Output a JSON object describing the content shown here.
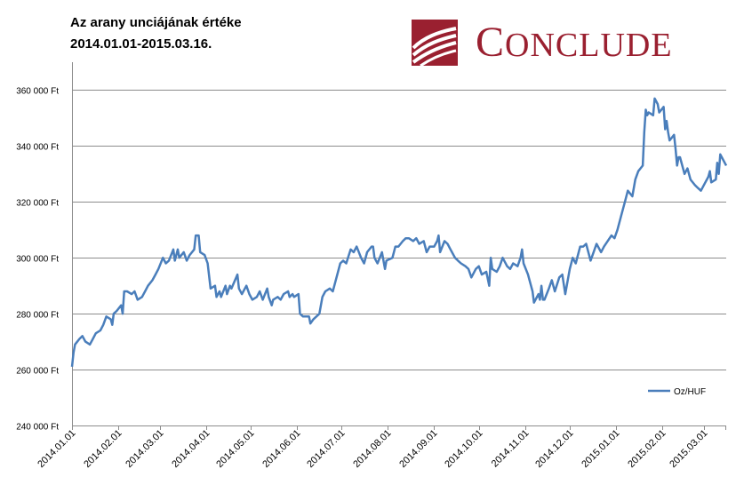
{
  "header": {
    "title_line1": "Az arany unciájának értéke",
    "title_line2": "2014.01.01-2015.03.16."
  },
  "brand": {
    "logo_cap": "C",
    "logo_rest": "ONCLUDE",
    "logo_text": "CONCLUDE",
    "color": "#9a2030"
  },
  "chart_data": {
    "type": "line",
    "title": "",
    "xlabel": "",
    "ylabel": "",
    "x_start": "2014.01.01",
    "x_end": "2015.03.16",
    "ylim": [
      240000,
      370000
    ],
    "grid": "horizontal",
    "legend_placement": "bottom-right",
    "y_ticks": [
      {
        "value": 240000,
        "label": "240 000 Ft"
      },
      {
        "value": 260000,
        "label": "260 000 Ft"
      },
      {
        "value": 280000,
        "label": "280 000 Ft"
      },
      {
        "value": 300000,
        "label": "300 000 Ft"
      },
      {
        "value": 320000,
        "label": "320 000 Ft"
      },
      {
        "value": 340000,
        "label": "340 000 Ft"
      },
      {
        "value": 360000,
        "label": "360 000 Ft"
      }
    ],
    "x_ticks": [
      "2014.01.01",
      "2014.02.01",
      "2014.03.01",
      "2014.04.01",
      "2014.05.01",
      "2014.06.01",
      "2014.07.01",
      "2014.08.01",
      "2014.09.01",
      "2014.10.01",
      "2014.11.01",
      "2014.12.01",
      "2015.01.01",
      "2015.02.01",
      "2015.03.01"
    ],
    "series": [
      {
        "name": "Oz/HUF",
        "color": "#4a7ebb",
        "points": [
          [
            "2014.01.01",
            261000
          ],
          [
            "2014.01.02",
            266000
          ],
          [
            "2014.01.03",
            269000
          ],
          [
            "2014.01.06",
            271000
          ],
          [
            "2014.01.08",
            272000
          ],
          [
            "2014.01.10",
            270000
          ],
          [
            "2014.01.13",
            269000
          ],
          [
            "2014.01.15",
            271000
          ],
          [
            "2014.01.17",
            273000
          ],
          [
            "2014.01.20",
            274000
          ],
          [
            "2014.01.22",
            276000
          ],
          [
            "2014.01.24",
            279000
          ],
          [
            "2014.01.27",
            278000
          ],
          [
            "2014.01.28",
            276000
          ],
          [
            "2014.01.29",
            280000
          ],
          [
            "2014.01.31",
            281000
          ],
          [
            "2014.02.03",
            283000
          ],
          [
            "2014.02.04",
            280000
          ],
          [
            "2014.02.05",
            288000
          ],
          [
            "2014.02.07",
            288000
          ],
          [
            "2014.02.10",
            287000
          ],
          [
            "2014.02.12",
            288000
          ],
          [
            "2014.02.14",
            285000
          ],
          [
            "2014.02.17",
            286000
          ],
          [
            "2014.02.19",
            288000
          ],
          [
            "2014.02.21",
            290000
          ],
          [
            "2014.02.24",
            292000
          ],
          [
            "2014.02.26",
            294000
          ],
          [
            "2014.02.28",
            296000
          ],
          [
            "2014.03.03",
            300000
          ],
          [
            "2014.03.05",
            298000
          ],
          [
            "2014.03.07",
            299000
          ],
          [
            "2014.03.10",
            303000
          ],
          [
            "2014.03.11",
            299000
          ],
          [
            "2014.03.13",
            303000
          ],
          [
            "2014.03.14",
            300000
          ],
          [
            "2014.03.17",
            302000
          ],
          [
            "2014.03.19",
            299000
          ],
          [
            "2014.03.21",
            301000
          ],
          [
            "2014.03.24",
            303000
          ],
          [
            "2014.03.25",
            308000
          ],
          [
            "2014.03.27",
            308000
          ],
          [
            "2014.03.28",
            302000
          ],
          [
            "2014.03.31",
            301000
          ],
          [
            "2014.04.02",
            298000
          ],
          [
            "2014.04.04",
            289000
          ],
          [
            "2014.04.07",
            290000
          ],
          [
            "2014.04.08",
            286000
          ],
          [
            "2014.04.10",
            288000
          ],
          [
            "2014.04.11",
            286000
          ],
          [
            "2014.04.14",
            290000
          ],
          [
            "2014.04.15",
            287000
          ],
          [
            "2014.04.17",
            290000
          ],
          [
            "2014.04.18",
            289000
          ],
          [
            "2014.04.22",
            294000
          ],
          [
            "2014.04.23",
            289000
          ],
          [
            "2014.04.25",
            287000
          ],
          [
            "2014.04.28",
            290000
          ],
          [
            "2014.04.30",
            287000
          ],
          [
            "2014.05.02",
            285000
          ],
          [
            "2014.05.05",
            286000
          ],
          [
            "2014.05.07",
            288000
          ],
          [
            "2014.05.09",
            285000
          ],
          [
            "2014.05.12",
            289000
          ],
          [
            "2014.05.13",
            286000
          ],
          [
            "2014.05.15",
            283000
          ],
          [
            "2014.05.16",
            285000
          ],
          [
            "2014.05.19",
            286000
          ],
          [
            "2014.05.21",
            285000
          ],
          [
            "2014.05.23",
            287000
          ],
          [
            "2014.05.26",
            288000
          ],
          [
            "2014.05.27",
            286000
          ],
          [
            "2014.05.29",
            287000
          ],
          [
            "2014.05.30",
            286000
          ],
          [
            "2014.06.02",
            287000
          ],
          [
            "2014.06.03",
            280000
          ],
          [
            "2014.06.05",
            279000
          ],
          [
            "2014.06.09",
            279000
          ],
          [
            "2014.06.10",
            276500
          ],
          [
            "2014.06.12",
            278000
          ],
          [
            "2014.06.16",
            280000
          ],
          [
            "2014.06.18",
            286000
          ],
          [
            "2014.06.20",
            288000
          ],
          [
            "2014.06.23",
            289000
          ],
          [
            "2014.06.25",
            288000
          ],
          [
            "2014.06.26",
            290000
          ],
          [
            "2014.06.30",
            298000
          ],
          [
            "2014.07.02",
            299000
          ],
          [
            "2014.07.04",
            298000
          ],
          [
            "2014.07.07",
            303000
          ],
          [
            "2014.07.09",
            302000
          ],
          [
            "2014.07.11",
            304000
          ],
          [
            "2014.07.14",
            300000
          ],
          [
            "2014.07.16",
            298000
          ],
          [
            "2014.07.18",
            302000
          ],
          [
            "2014.07.21",
            304000
          ],
          [
            "2014.07.22",
            304000
          ],
          [
            "2014.07.23",
            300000
          ],
          [
            "2014.07.25",
            298000
          ],
          [
            "2014.07.28",
            302000
          ],
          [
            "2014.07.30",
            296000
          ],
          [
            "2014.07.31",
            299000
          ],
          [
            "2014.08.04",
            300000
          ],
          [
            "2014.08.06",
            304000
          ],
          [
            "2014.08.08",
            304000
          ],
          [
            "2014.08.11",
            306000
          ],
          [
            "2014.08.13",
            307000
          ],
          [
            "2014.08.15",
            307000
          ],
          [
            "2014.08.18",
            306000
          ],
          [
            "2014.08.20",
            307000
          ],
          [
            "2014.08.22",
            305000
          ],
          [
            "2014.08.25",
            306000
          ],
          [
            "2014.08.27",
            302000
          ],
          [
            "2014.08.29",
            304000
          ],
          [
            "2014.09.01",
            304000
          ],
          [
            "2014.09.03",
            306000
          ],
          [
            "2014.09.04",
            308000
          ],
          [
            "2014.09.05",
            302000
          ],
          [
            "2014.09.08",
            306000
          ],
          [
            "2014.09.10",
            305000
          ],
          [
            "2014.09.12",
            303000
          ],
          [
            "2014.09.15",
            300000
          ],
          [
            "2014.09.17",
            299000
          ],
          [
            "2014.09.19",
            298000
          ],
          [
            "2014.09.22",
            297000
          ],
          [
            "2014.09.24",
            296000
          ],
          [
            "2014.09.26",
            293000
          ],
          [
            "2014.09.29",
            296000
          ],
          [
            "2014.10.01",
            297000
          ],
          [
            "2014.10.03",
            294000
          ],
          [
            "2014.10.06",
            295000
          ],
          [
            "2014.10.08",
            290000
          ],
          [
            "2014.10.09",
            300000
          ],
          [
            "2014.10.10",
            296000
          ],
          [
            "2014.10.13",
            295000
          ],
          [
            "2014.10.15",
            297000
          ],
          [
            "2014.10.17",
            300000
          ],
          [
            "2014.10.20",
            297000
          ],
          [
            "2014.10.22",
            296000
          ],
          [
            "2014.10.24",
            298000
          ],
          [
            "2014.10.27",
            297000
          ],
          [
            "2014.10.29",
            300000
          ],
          [
            "2014.10.30",
            303000
          ],
          [
            "2014.10.31",
            298000
          ],
          [
            "2014.11.03",
            294000
          ],
          [
            "2014.11.04",
            292000
          ],
          [
            "2014.11.05",
            290000
          ],
          [
            "2014.11.06",
            288000
          ],
          [
            "2014.11.07",
            284000
          ],
          [
            "2014.11.10",
            287000
          ],
          [
            "2014.11.11",
            285000
          ],
          [
            "2014.11.12",
            290000
          ],
          [
            "2014.11.13",
            285000
          ],
          [
            "2014.11.14",
            285000
          ],
          [
            "2014.11.17",
            289000
          ],
          [
            "2014.11.19",
            292000
          ],
          [
            "2014.11.21",
            288000
          ],
          [
            "2014.11.24",
            293000
          ],
          [
            "2014.11.26",
            294000
          ],
          [
            "2014.11.28",
            287000
          ],
          [
            "2014.12.01",
            296000
          ],
          [
            "2014.12.03",
            300000
          ],
          [
            "2014.12.05",
            298000
          ],
          [
            "2014.12.08",
            304000
          ],
          [
            "2014.12.10",
            304000
          ],
          [
            "2014.12.12",
            305000
          ],
          [
            "2014.12.15",
            299000
          ],
          [
            "2014.12.17",
            302000
          ],
          [
            "2014.12.19",
            305000
          ],
          [
            "2014.12.22",
            302000
          ],
          [
            "2014.12.24",
            304000
          ],
          [
            "2014.12.29",
            308000
          ],
          [
            "2014.12.31",
            307000
          ],
          [
            "2015.01.02",
            310000
          ],
          [
            "2015.01.05",
            316000
          ],
          [
            "2015.01.07",
            320000
          ],
          [
            "2015.01.09",
            324000
          ],
          [
            "2015.01.12",
            322000
          ],
          [
            "2015.01.14",
            328000
          ],
          [
            "2015.01.16",
            331000
          ],
          [
            "2015.01.19",
            333000
          ],
          [
            "2015.01.20",
            345000
          ],
          [
            "2015.01.21",
            353000
          ],
          [
            "2015.01.22",
            351000
          ],
          [
            "2015.01.23",
            352000
          ],
          [
            "2015.01.26",
            351000
          ],
          [
            "2015.01.27",
            357000
          ],
          [
            "2015.01.28",
            356000
          ],
          [
            "2015.01.29",
            355000
          ],
          [
            "2015.01.30",
            352000
          ],
          [
            "2015.02.02",
            354000
          ],
          [
            "2015.02.03",
            346000
          ],
          [
            "2015.02.04",
            349000
          ],
          [
            "2015.02.05",
            345000
          ],
          [
            "2015.02.06",
            342000
          ],
          [
            "2015.02.09",
            344000
          ],
          [
            "2015.02.10",
            339000
          ],
          [
            "2015.02.11",
            333000
          ],
          [
            "2015.02.12",
            336000
          ],
          [
            "2015.02.13",
            336000
          ],
          [
            "2015.02.16",
            330000
          ],
          [
            "2015.02.18",
            332000
          ],
          [
            "2015.02.20",
            328000
          ],
          [
            "2015.02.23",
            326000
          ],
          [
            "2015.02.25",
            325000
          ],
          [
            "2015.02.27",
            324000
          ],
          [
            "2015.03.02",
            327000
          ],
          [
            "2015.03.04",
            329000
          ],
          [
            "2015.03.05",
            331000
          ],
          [
            "2015.03.06",
            327000
          ],
          [
            "2015.03.09",
            328000
          ],
          [
            "2015.03.10",
            334000
          ],
          [
            "2015.03.11",
            330000
          ],
          [
            "2015.03.12",
            337000
          ],
          [
            "2015.03.13",
            336000
          ],
          [
            "2015.03.16",
            333000
          ]
        ]
      }
    ]
  }
}
